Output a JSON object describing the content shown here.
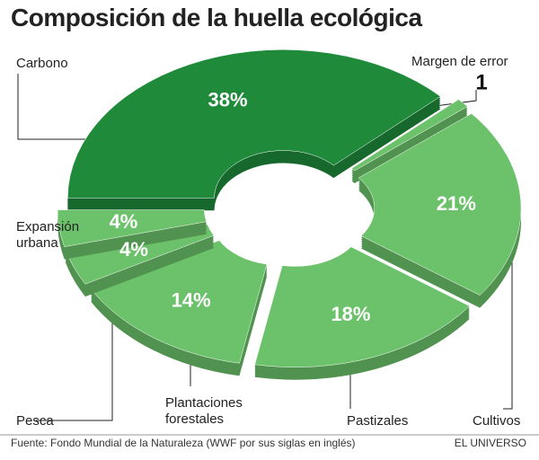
{
  "chart_data": {
    "type": "pie",
    "title": "Composición de la huella ecológica",
    "categories": [
      "Carbono",
      "Margen de error",
      "Cultivos",
      "Pastizales",
      "Plantaciones forestales",
      "Pesca",
      "Expansión urbana"
    ],
    "values": [
      38,
      1,
      21,
      18,
      14,
      4,
      4
    ],
    "value_labels": [
      "38%",
      "1",
      "21%",
      "18%",
      "14%",
      "4%",
      "4%"
    ],
    "colors": [
      "#1e8a3a",
      "#6cc26a",
      "#6cc26a",
      "#6cc26a",
      "#6cc26a",
      "#6cc26a",
      "#6cc26a"
    ],
    "source": "Fuente: Fondo Mundial de la Naturaleza (WWF por sus siglas en inglés)",
    "credit": "EL UNIVERSO"
  }
}
